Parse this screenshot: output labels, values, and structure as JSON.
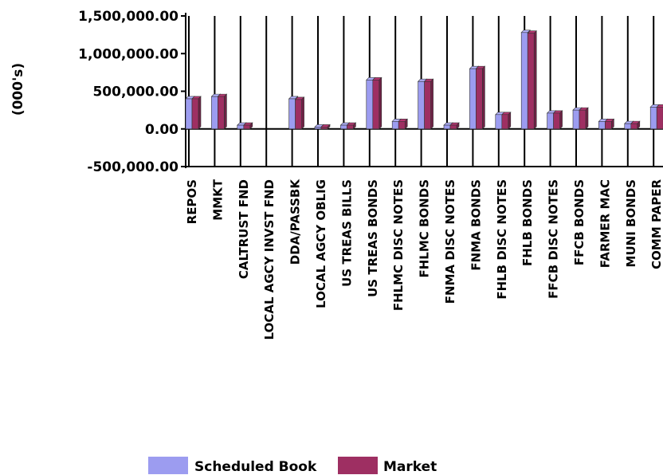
{
  "chart_data": {
    "type": "bar",
    "ylabel": "(000's)",
    "ylim": [
      -500000,
      1500000
    ],
    "yticks": [
      "1,500,000.00",
      "1,000,000.00",
      "500,000.00",
      "0.00",
      "-500,000.00"
    ],
    "ytick_values": [
      1500000,
      1000000,
      500000,
      0,
      -500000
    ],
    "categories": [
      "REPOS",
      "MMKT",
      "CALTRUST FND",
      "LOCAL AGCY INVST FND",
      "DDA/PASSBK",
      "LOCAL AGCY OBLIG",
      "US TREAS BILLS",
      "US TREAS BONDS",
      "FHLMC DISC NOTES",
      "FHLMC BONDS",
      "FNMA DISC NOTES",
      "FNMA BONDS",
      "FHLB DISC NOTES",
      "FHLB BONDS",
      "FFCB DISC NOTES",
      "FFCB BONDS",
      "FARMER MAC",
      "MUNI BONDS",
      "COMM PAPER"
    ],
    "series": [
      {
        "name": "Scheduled Book",
        "color": "#9C9CF0",
        "values": [
          400000,
          430000,
          50000,
          0,
          400000,
          25000,
          50000,
          650000,
          100000,
          630000,
          50000,
          800000,
          190000,
          1280000,
          210000,
          250000,
          100000,
          70000,
          290000
        ]
      },
      {
        "name": "Market",
        "color": "#9E2F62",
        "values": [
          400000,
          430000,
          50000,
          0,
          390000,
          25000,
          50000,
          650000,
          100000,
          630000,
          50000,
          800000,
          190000,
          1270000,
          210000,
          250000,
          100000,
          70000,
          290000
        ]
      }
    ],
    "grid": "vertical",
    "legend": "bottom"
  }
}
